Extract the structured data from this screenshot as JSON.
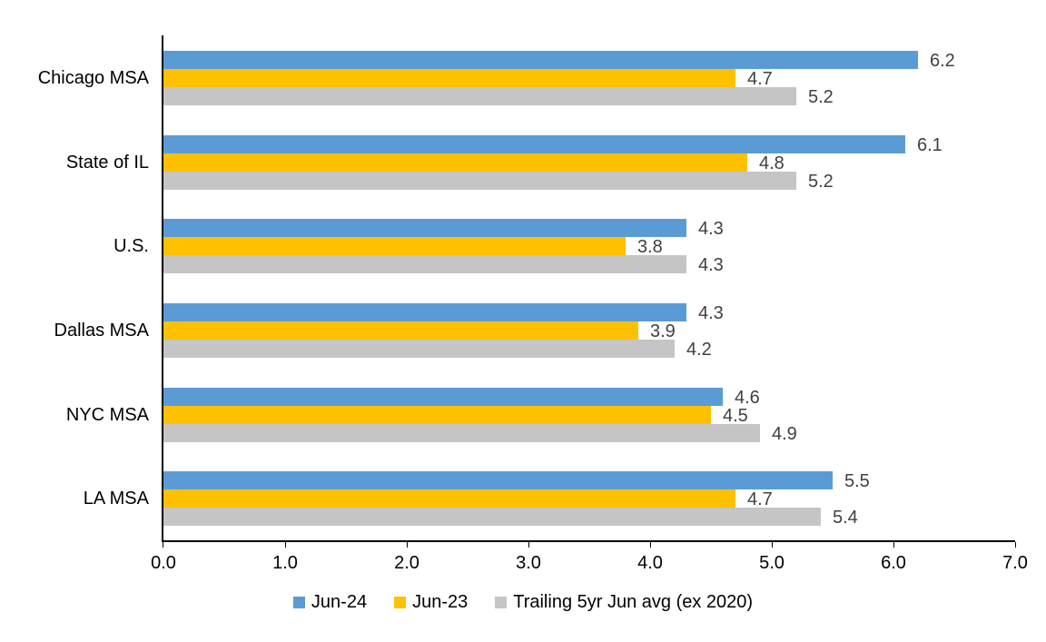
{
  "chart_data": {
    "type": "bar",
    "orientation": "horizontal",
    "title": "",
    "xlabel": "",
    "ylabel": "",
    "xlim": [
      0.0,
      7.0
    ],
    "x_ticks": [
      "0.0",
      "1.0",
      "2.0",
      "3.0",
      "4.0",
      "5.0",
      "6.0",
      "7.0"
    ],
    "grid": false,
    "legend_position": "bottom",
    "data_labels_shown": true,
    "categories": [
      "Chicago MSA",
      "State of IL",
      "U.S.",
      "Dallas MSA",
      "NYC MSA",
      "LA MSA"
    ],
    "series": [
      {
        "name": "Jun-24",
        "color": "#5B9BD5",
        "values": [
          6.2,
          6.1,
          4.3,
          4.3,
          4.6,
          5.5
        ]
      },
      {
        "name": "Jun-23",
        "color": "#FFC000",
        "values": [
          4.7,
          4.8,
          3.8,
          3.9,
          4.5,
          4.7
        ]
      },
      {
        "name": "Trailing 5yr Jun avg (ex 2020)",
        "color": "#C5C5C5",
        "values": [
          5.2,
          5.2,
          4.3,
          4.2,
          4.9,
          5.4
        ]
      }
    ],
    "colors": {
      "axis": "#000000",
      "data_label": "#404040",
      "category_label": "#000000",
      "tick_label": "#000000",
      "legend_label": "#000000"
    }
  }
}
